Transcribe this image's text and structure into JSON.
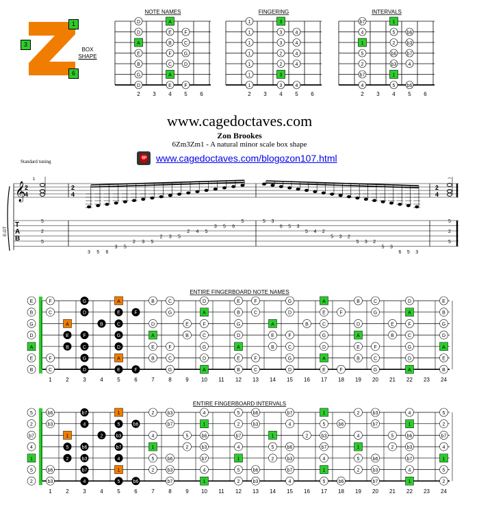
{
  "logo": {
    "badges": [
      "1",
      "3",
      "6"
    ],
    "caption": [
      "BOX",
      "SHAPE"
    ],
    "colors": {
      "logo": "#f07d00",
      "badge": "#2dcc2d"
    }
  },
  "small_diagrams": {
    "titles": [
      "NOTE NAMES",
      "FINGERING",
      "INTERVALS"
    ],
    "fret_numbers": [
      "2",
      "3",
      "4",
      "5",
      "6"
    ],
    "note_names": [
      [
        "D",
        "A",
        ""
      ],
      [
        "D",
        "E",
        "F"
      ],
      [
        "A",
        "B",
        "C"
      ],
      [
        "E",
        "F",
        "G"
      ],
      [
        "B",
        "C",
        "D"
      ],
      [
        "G",
        "A",
        ""
      ],
      [
        "D",
        "E",
        "F"
      ]
    ],
    "fingering": [
      [
        "1",
        "3",
        ""
      ],
      [
        "1",
        "3",
        "4"
      ],
      [
        "1",
        "3",
        "4"
      ],
      [
        "1",
        "2",
        "4"
      ],
      [
        "1",
        "2",
        "4"
      ],
      [
        "1",
        "3",
        ""
      ],
      [
        "1",
        "3",
        "4"
      ]
    ],
    "intervals": [
      [
        "b7",
        "1",
        ""
      ],
      [
        "4",
        "5",
        "b6"
      ],
      [
        "1",
        "2",
        "b3"
      ],
      [
        "5",
        "b6",
        "b7"
      ],
      [
        "2",
        "b3",
        "4"
      ],
      [
        "b7",
        "1",
        ""
      ],
      [
        "4",
        "5",
        "b6"
      ]
    ]
  },
  "header": {
    "site": "www.cagedoctaves.com",
    "author": "Zon Brookes",
    "subtitle": "6Zm3Zm1 - A natural minor scale box shape",
    "link": "www.cagedoctaves.com/blogozon107.html",
    "tuning": "Standard tuning"
  },
  "score": {
    "time_sig": [
      "2",
      "4"
    ],
    "clef": "𝄞",
    "tab_letters": [
      "T",
      "A",
      "B"
    ],
    "track": "E-GT",
    "measure_number": "1",
    "tab_start_notes": [
      "5",
      "2",
      "5"
    ],
    "tab_end_notes": [
      "5",
      "2",
      "5"
    ],
    "tab_run": [
      {
        "s": 6,
        "f": "3"
      },
      {
        "s": 6,
        "f": "5"
      },
      {
        "s": 6,
        "f": "6"
      },
      {
        "s": 5,
        "f": "3"
      },
      {
        "s": 5,
        "f": "5"
      },
      {
        "s": 4,
        "f": "2"
      },
      {
        "s": 4,
        "f": "3"
      },
      {
        "s": 4,
        "f": "5"
      },
      {
        "s": 3,
        "f": "2"
      },
      {
        "s": 3,
        "f": "3"
      },
      {
        "s": 3,
        "f": "5"
      },
      {
        "s": 2,
        "f": "2"
      },
      {
        "s": 2,
        "f": "4"
      },
      {
        "s": 2,
        "f": "5"
      },
      {
        "s": 1,
        "f": "3"
      },
      {
        "s": 1,
        "f": "5"
      },
      {
        "s": 1,
        "f": "6"
      },
      {
        "s": 0,
        "f": "5"
      },
      {
        "s": 0,
        "f": "5"
      },
      {
        "s": 0,
        "f": "3"
      },
      {
        "s": 1,
        "f": "6"
      },
      {
        "s": 1,
        "f": "5"
      },
      {
        "s": 1,
        "f": "3"
      },
      {
        "s": 2,
        "f": "5"
      },
      {
        "s": 2,
        "f": "4"
      },
      {
        "s": 2,
        "f": "2"
      },
      {
        "s": 3,
        "f": "5"
      },
      {
        "s": 3,
        "f": "3"
      },
      {
        "s": 3,
        "f": "2"
      },
      {
        "s": 4,
        "f": "5"
      },
      {
        "s": 4,
        "f": "3"
      },
      {
        "s": 4,
        "f": "2"
      },
      {
        "s": 5,
        "f": "5"
      },
      {
        "s": 5,
        "f": "3"
      },
      {
        "s": 6,
        "f": "6"
      },
      {
        "s": 6,
        "f": "5"
      },
      {
        "s": 6,
        "f": "3"
      }
    ]
  },
  "note_board": {
    "title": "ENTIRE FINGERBOARD NOTE NAMES",
    "open": [
      "E",
      "B",
      "G",
      "D",
      "A",
      "E",
      "B"
    ],
    "rows": [
      [
        "F",
        "",
        "G",
        "",
        "A",
        "",
        "B",
        "C",
        "",
        "D",
        "",
        "E",
        "F",
        "",
        "G",
        "",
        "A",
        "",
        "B",
        "C",
        "",
        "D",
        "",
        "E"
      ],
      [
        "C",
        "",
        "D",
        "",
        "E",
        "F",
        "",
        "G",
        "",
        "A",
        "",
        "B",
        "C",
        "",
        "D",
        "",
        "E",
        "F",
        "",
        "G",
        "",
        "A",
        "",
        "B"
      ],
      [
        "",
        "A",
        "",
        "B",
        "C",
        "",
        "D",
        "",
        "E",
        "F",
        "",
        "G",
        "",
        "A",
        "",
        "B",
        "C",
        "",
        "D",
        "",
        "E",
        "F",
        "",
        "G"
      ],
      [
        "",
        "E",
        "F",
        "",
        "G",
        "",
        "A",
        "",
        "B",
        "C",
        "",
        "D",
        "",
        "E",
        "F",
        "",
        "G",
        "",
        "A",
        "",
        "B",
        "C",
        "",
        "D"
      ],
      [
        "",
        "B",
        "C",
        "",
        "D",
        "",
        "E",
        "F",
        "",
        "G",
        "",
        "A",
        "",
        "B",
        "C",
        "",
        "D",
        "",
        "E",
        "F",
        "",
        "G",
        "",
        "A"
      ],
      [
        "F",
        "",
        "G",
        "",
        "A",
        "",
        "B",
        "C",
        "",
        "D",
        "",
        "E",
        "F",
        "",
        "G",
        "",
        "A",
        "",
        "B",
        "C",
        "",
        "D",
        "",
        "E"
      ],
      [
        "C",
        "",
        "D",
        "",
        "E",
        "F",
        "",
        "G",
        "",
        "A",
        "",
        "B",
        "C",
        "",
        "D",
        "",
        "E",
        "F",
        "",
        "G",
        "",
        "A",
        "",
        "B"
      ]
    ],
    "fret_numbers": [
      "1",
      "2",
      "3",
      "4",
      "5",
      "6",
      "7",
      "8",
      "9",
      "10",
      "11",
      "12",
      "13",
      "14",
      "15",
      "16",
      "17",
      "18",
      "19",
      "20",
      "21",
      "22",
      "23",
      "24"
    ]
  },
  "interval_board": {
    "title": "ENTIRE FINGERBOARD INTERVALS",
    "open": [
      "5",
      "2",
      "b7",
      "4",
      "1",
      "5",
      "2"
    ],
    "rows": [
      [
        "b6",
        "",
        "b7",
        "",
        "1",
        "",
        "2",
        "b3",
        "",
        "4",
        "",
        "5",
        "b6",
        "",
        "b7",
        "",
        "1",
        "",
        "2",
        "b3",
        "",
        "4",
        "",
        "5"
      ],
      [
        "b3",
        "",
        "4",
        "",
        "5",
        "b6",
        "",
        "b7",
        "",
        "1",
        "",
        "2",
        "b3",
        "",
        "4",
        "",
        "5",
        "b6",
        "",
        "b7",
        "",
        "1",
        "",
        "2"
      ],
      [
        "",
        "1",
        "",
        "2",
        "b3",
        "",
        "4",
        "",
        "5",
        "b6",
        "",
        "b7",
        "",
        "1",
        "",
        "2",
        "b3",
        "",
        "4",
        "",
        "5",
        "b6",
        "",
        "b7"
      ],
      [
        "",
        "5",
        "b6",
        "",
        "b7",
        "",
        "1",
        "",
        "2",
        "b3",
        "",
        "4",
        "",
        "5",
        "b6",
        "",
        "b7",
        "",
        "1",
        "",
        "2",
        "b3",
        "",
        "4"
      ],
      [
        "",
        "2",
        "b3",
        "",
        "4",
        "",
        "5",
        "b6",
        "",
        "b7",
        "",
        "1",
        "",
        "2",
        "b3",
        "",
        "4",
        "",
        "5",
        "b6",
        "",
        "b7",
        "",
        "1"
      ],
      [
        "b6",
        "",
        "b7",
        "",
        "1",
        "",
        "2",
        "b3",
        "",
        "4",
        "",
        "5",
        "b6",
        "",
        "b7",
        "",
        "1",
        "",
        "2",
        "b3",
        "",
        "4",
        "",
        "5"
      ],
      [
        "b3",
        "",
        "4",
        "",
        "5",
        "b6",
        "",
        "b7",
        "",
        "1",
        "",
        "2",
        "b3",
        "",
        "4",
        "",
        "5",
        "b6",
        "",
        "b7",
        "",
        "1",
        "",
        "2"
      ]
    ],
    "fret_numbers": [
      "1",
      "2",
      "3",
      "4",
      "5",
      "6",
      "7",
      "8",
      "9",
      "10",
      "11",
      "12",
      "13",
      "14",
      "15",
      "16",
      "17",
      "18",
      "19",
      "20",
      "21",
      "22",
      "23",
      "24"
    ]
  },
  "colors": {
    "root": "#2dcc2d",
    "orange": "#f07d00",
    "black": "#000000"
  }
}
